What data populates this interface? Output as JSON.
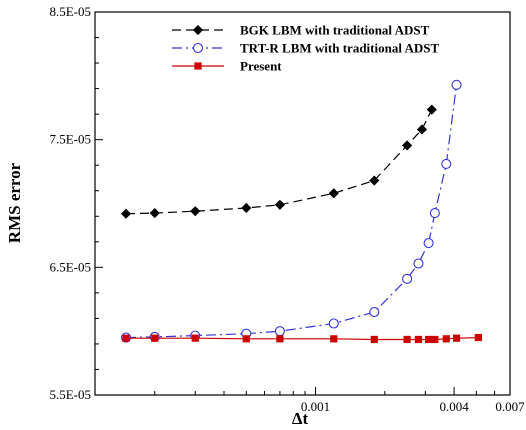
{
  "chart_data": {
    "type": "line",
    "xlabel": "Δt",
    "ylabel": "RMS error",
    "x_scale": "log",
    "xlim": [
      0.00011,
      0.007
    ],
    "ylim": [
      5.5e-05,
      8.5e-05
    ],
    "x_tick_labels": [
      {
        "value": 0.001,
        "label": "0.001"
      },
      {
        "value": 0.004,
        "label": "0.004"
      },
      {
        "value": 0.007,
        "label": "0.007"
      }
    ],
    "y_tick_labels": [
      {
        "value": 5.5e-05,
        "label": "5.5E-05"
      },
      {
        "value": 6.5e-05,
        "label": "6.5E-05"
      },
      {
        "value": 7.5e-05,
        "label": "7.5E-05"
      },
      {
        "value": 8.5e-05,
        "label": "8.5E-05"
      }
    ],
    "grid": false,
    "legend_position": "top-right",
    "series": [
      {
        "name": "BGK LBM with traditional ADST",
        "color": "#000000",
        "line_style": "dashed",
        "marker": "filled-diamond",
        "points": [
          [
            0.00015,
            6.92e-05
          ],
          [
            0.0002,
            6.925e-05
          ],
          [
            0.0003,
            6.94e-05
          ],
          [
            0.0005,
            6.965e-05
          ],
          [
            0.0007,
            6.99e-05
          ],
          [
            0.0012,
            7.08e-05
          ],
          [
            0.0018,
            7.18e-05
          ],
          [
            0.0025,
            7.455e-05
          ],
          [
            0.0029,
            7.58e-05
          ],
          [
            0.0032,
            7.735e-05
          ]
        ]
      },
      {
        "name": "TRT-R LBM with traditional ADST",
        "color": "#3333dd",
        "line_style": "dashdot",
        "marker": "open-circle",
        "points": [
          [
            0.00015,
            5.95e-05
          ],
          [
            0.0002,
            5.955e-05
          ],
          [
            0.0003,
            5.965e-05
          ],
          [
            0.0005,
            5.98e-05
          ],
          [
            0.0007,
            6e-05
          ],
          [
            0.0012,
            6.06e-05
          ],
          [
            0.0018,
            6.15e-05
          ],
          [
            0.0025,
            6.41e-05
          ],
          [
            0.0028,
            6.53e-05
          ],
          [
            0.0031,
            6.69e-05
          ],
          [
            0.0033,
            6.925e-05
          ],
          [
            0.0037,
            7.31e-05
          ],
          [
            0.0041,
            7.93e-05
          ]
        ]
      },
      {
        "name": "Present",
        "color": "#cc0000",
        "line_style": "solid",
        "marker": "filled-square",
        "points": [
          [
            0.00015,
            5.945e-05
          ],
          [
            0.0002,
            5.945e-05
          ],
          [
            0.0003,
            5.945e-05
          ],
          [
            0.0005,
            5.94e-05
          ],
          [
            0.0007,
            5.94e-05
          ],
          [
            0.0012,
            5.94e-05
          ],
          [
            0.0018,
            5.935e-05
          ],
          [
            0.0025,
            5.935e-05
          ],
          [
            0.0028,
            5.935e-05
          ],
          [
            0.0031,
            5.935e-05
          ],
          [
            0.0033,
            5.935e-05
          ],
          [
            0.0037,
            5.94e-05
          ],
          [
            0.0041,
            5.945e-05
          ],
          [
            0.0051,
            5.95e-05
          ]
        ]
      }
    ]
  }
}
